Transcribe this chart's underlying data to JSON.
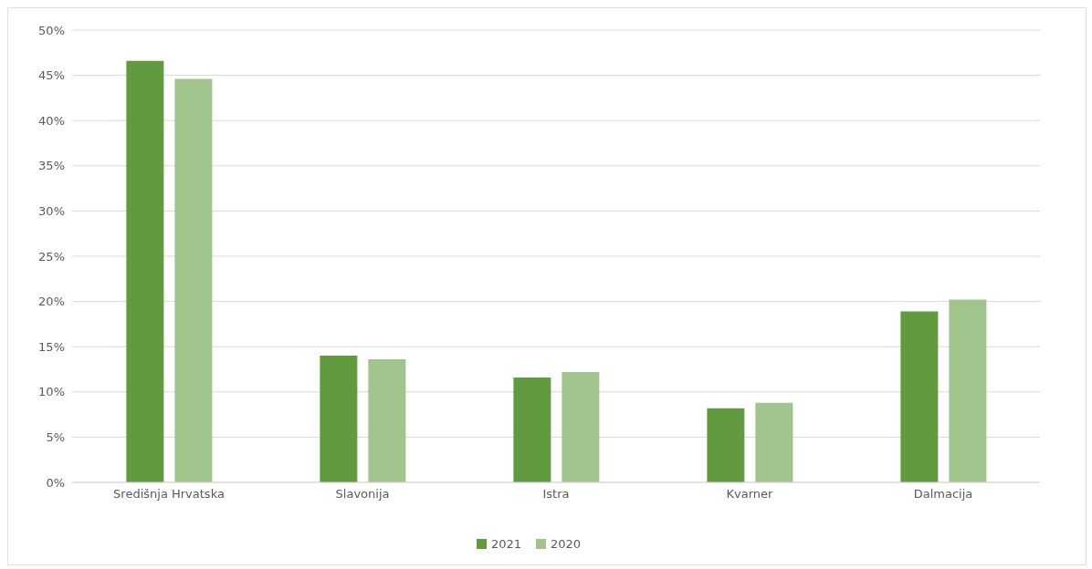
{
  "chart_data": {
    "type": "bar",
    "categories": [
      "Središnja Hrvatska",
      "Slavonija",
      "Istra",
      "Kvarner",
      "Dalmacija"
    ],
    "series": [
      {
        "name": "2021",
        "color": "#629b3f",
        "values": [
          46.6,
          14.0,
          11.6,
          8.2,
          18.9
        ]
      },
      {
        "name": "2020",
        "color": "#a1c48c",
        "values": [
          44.6,
          13.6,
          12.2,
          8.8,
          20.2
        ]
      }
    ],
    "ylim": [
      0,
      50
    ],
    "yticks": [
      {
        "value": 0,
        "label": "0%"
      },
      {
        "value": 5,
        "label": "5%"
      },
      {
        "value": 10,
        "label": "10%"
      },
      {
        "value": 15,
        "label": "15%"
      },
      {
        "value": 20,
        "label": "20%"
      },
      {
        "value": 25,
        "label": "25%"
      },
      {
        "value": 30,
        "label": "30%"
      },
      {
        "value": 35,
        "label": "35%"
      },
      {
        "value": 40,
        "label": "40%"
      },
      {
        "value": 45,
        "label": "45%"
      },
      {
        "value": 50,
        "label": "50%"
      }
    ],
    "grid": "y",
    "legend": "bottom"
  }
}
